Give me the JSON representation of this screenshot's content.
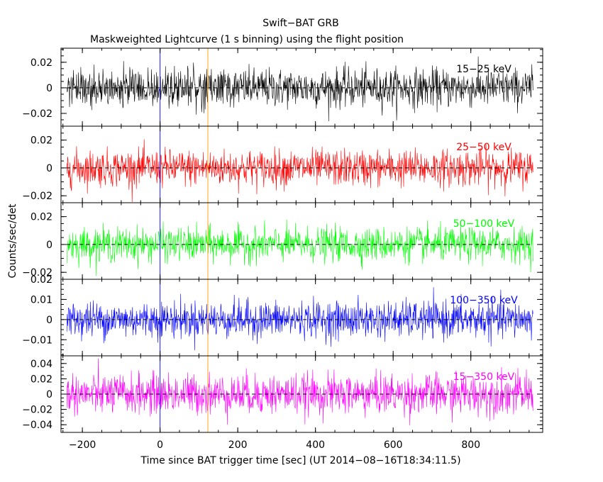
{
  "chart_data": {
    "type": "line",
    "title": "Swift−BAT GRB",
    "subtitle": "Maskweighted Lightcurve (1 s binning) using the flight position",
    "xlabel": "Time since BAT trigger time [sec] (UT 2014−08−16T18:34:11.5)",
    "ylabel": "Counts/sec/det",
    "xlim": [
      -255,
      985
    ],
    "x_ticks": [
      -200,
      0,
      200,
      400,
      600,
      800
    ],
    "x_tick_labels": [
      "−200",
      "0",
      "200",
      "400",
      "600",
      "800"
    ],
    "data_x_range": [
      -240,
      960
    ],
    "markers": [
      {
        "x": 0,
        "color": "#0000ff"
      },
      {
        "x": 123,
        "color": "#ff9900"
      }
    ],
    "panels": [
      {
        "name": "15−25 keV",
        "color": "#000000",
        "ylim": [
          -0.03,
          0.031
        ],
        "y_ticks": [
          -0.02,
          0,
          0.02
        ],
        "y_tick_labels": [
          "−0.02",
          "0",
          "0.02"
        ],
        "noise_sigma": 0.0075
      },
      {
        "name": "25−50 keV",
        "color": "#ff0000",
        "ylim": [
          -0.025,
          0.03
        ],
        "y_ticks": [
          -0.02,
          0,
          0.02
        ],
        "y_tick_labels": [
          "−0.02",
          "0",
          "0.02"
        ],
        "noise_sigma": 0.0065
      },
      {
        "name": "50−100 keV",
        "color": "#00ff00",
        "ylim": [
          -0.025,
          0.03
        ],
        "y_ticks": [
          -0.02,
          0,
          0.02
        ],
        "y_tick_labels": [
          "−0.02",
          "0",
          "0.02"
        ],
        "noise_sigma": 0.006
      },
      {
        "name": "100−350 keV",
        "color": "#0000ff",
        "ylim": [
          -0.018,
          0.02
        ],
        "y_ticks": [
          -0.01,
          0,
          0.01,
          0.02
        ],
        "y_tick_labels": [
          "−0.01",
          "0",
          "0.01",
          "0.02"
        ],
        "noise_sigma": 0.0045
      },
      {
        "name": "15−350 keV",
        "color": "#ff00ff",
        "ylim": [
          -0.05,
          0.05
        ],
        "y_ticks": [
          -0.04,
          -0.02,
          0,
          0.02,
          0.04
        ],
        "y_tick_labels": [
          "−0.04",
          "−0.02",
          "0",
          "0.02",
          "0.04"
        ],
        "noise_sigma": 0.013
      }
    ]
  }
}
